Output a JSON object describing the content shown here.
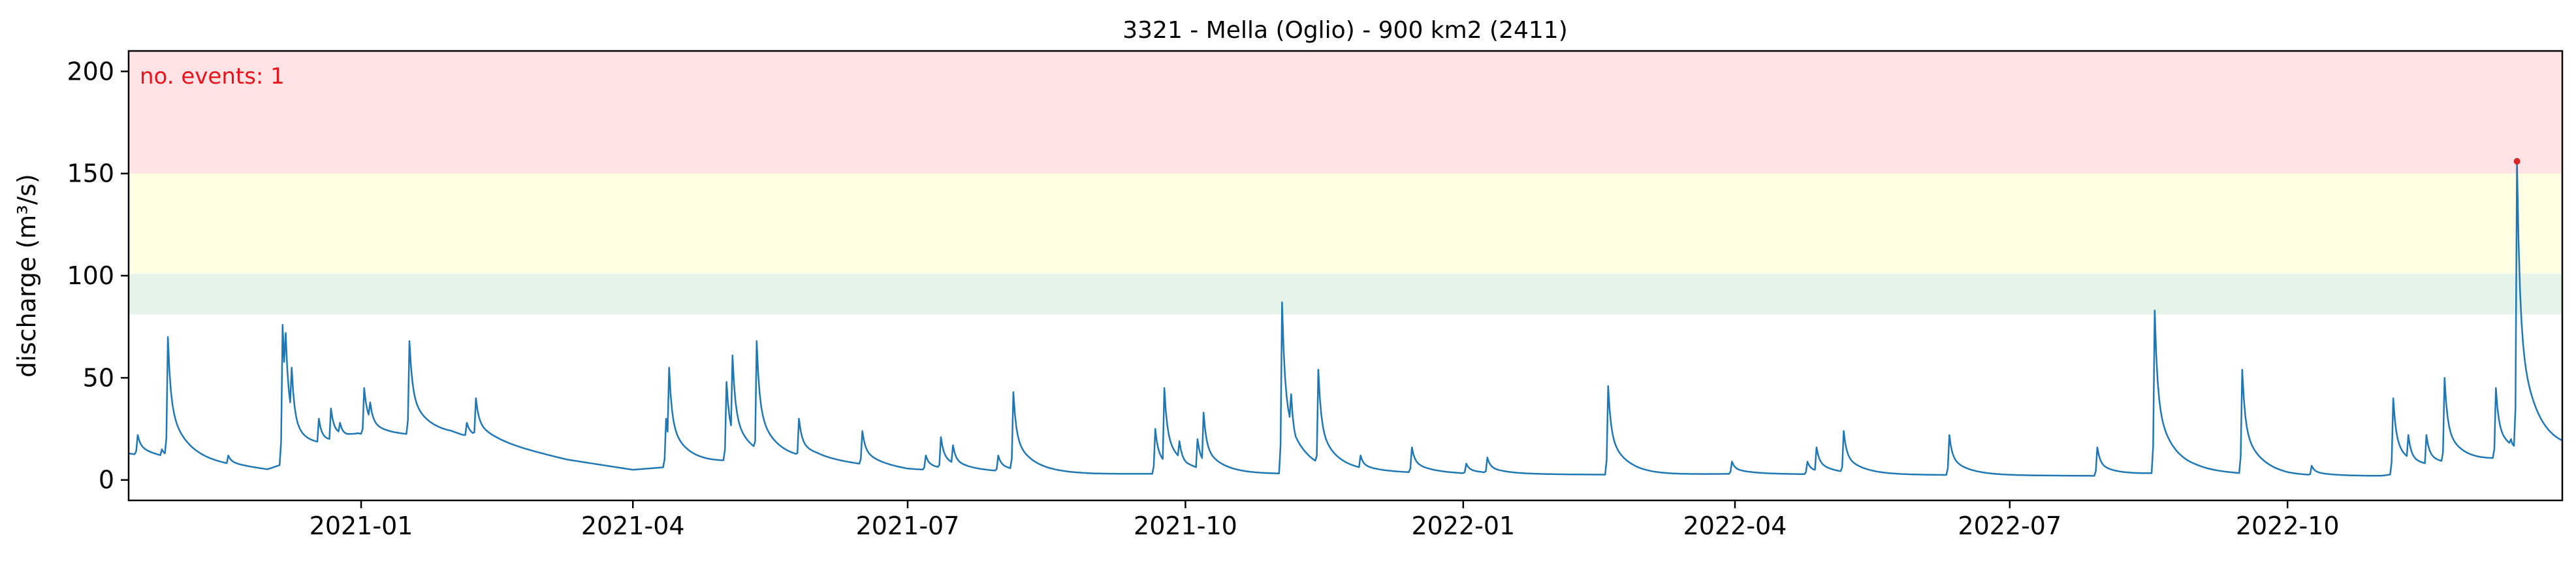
{
  "chart_data": {
    "type": "line",
    "title": "3321 - Mella (Oglio) - 900 km2 (2411)",
    "xlabel": "",
    "ylabel": "discharge (m³/s)",
    "xlim": [
      "2020-10-16",
      "2022-12-31"
    ],
    "ylim": [
      -10,
      210
    ],
    "grid": false,
    "colors": {
      "line": "#1f77b4",
      "event": "#d62728",
      "annotation": "#e8141c",
      "band_red": "#ffe3e5",
      "band_yellow": "#ffffe3",
      "band_green": "#e5f3e8"
    },
    "threshold_bands": [
      {
        "from": 150,
        "to": 210,
        "color": "#ffe3e5"
      },
      {
        "from": 101,
        "to": 150,
        "color": "#ffffe3"
      },
      {
        "from": 81,
        "to": 101,
        "color": "#e5f3e8"
      }
    ],
    "annotation": "no. events: 1",
    "x_ticks": [
      "2021-01",
      "2021-04",
      "2021-07",
      "2021-10",
      "2022-01",
      "2022-04",
      "2022-07",
      "2022-10"
    ],
    "y_ticks": [
      0,
      50,
      100,
      150,
      200
    ],
    "baseline": [
      [
        "2020-10-16",
        13
      ],
      [
        "2020-10-31",
        10
      ],
      [
        "2020-12-01",
        5
      ],
      [
        "2020-12-31",
        21
      ],
      [
        "2021-01-31",
        22
      ],
      [
        "2021-02-15",
        18
      ],
      [
        "2021-03-10",
        10
      ],
      [
        "2021-04-01",
        5
      ],
      [
        "2021-05-05",
        9
      ],
      [
        "2021-06-01",
        10
      ],
      [
        "2021-07-01",
        5
      ],
      [
        "2021-08-01",
        4
      ],
      [
        "2021-09-01",
        3
      ],
      [
        "2021-11-01",
        3
      ],
      [
        "2021-12-01",
        4
      ],
      [
        "2022-01-01",
        3
      ],
      [
        "2022-03-01",
        2.5
      ],
      [
        "2022-04-01",
        3
      ],
      [
        "2022-06-01",
        2.5
      ],
      [
        "2022-08-01",
        2
      ],
      [
        "2022-09-01",
        4
      ],
      [
        "2022-10-01",
        2
      ],
      [
        "2022-11-01",
        2
      ],
      [
        "2022-12-31",
        14
      ]
    ],
    "peaks": [
      [
        "2020-10-19",
        22
      ],
      [
        "2020-10-27",
        15
      ],
      [
        "2020-10-29",
        70
      ],
      [
        "2020-11-18",
        12
      ],
      [
        "2020-12-06",
        76
      ],
      [
        "2020-12-07",
        72
      ],
      [
        "2020-12-09",
        55
      ],
      [
        "2020-12-12",
        24
      ],
      [
        "2020-12-18",
        30
      ],
      [
        "2020-12-22",
        35
      ],
      [
        "2020-12-25",
        28
      ],
      [
        "2021-01-02",
        45
      ],
      [
        "2021-01-04",
        38
      ],
      [
        "2021-01-17",
        68
      ],
      [
        "2021-02-05",
        28
      ],
      [
        "2021-02-08",
        40
      ],
      [
        "2021-04-12",
        30
      ],
      [
        "2021-04-13",
        55
      ],
      [
        "2021-05-02",
        48
      ],
      [
        "2021-05-04",
        61
      ],
      [
        "2021-05-12",
        68
      ],
      [
        "2021-05-26",
        30
      ],
      [
        "2021-06-16",
        24
      ],
      [
        "2021-07-07",
        12
      ],
      [
        "2021-07-12",
        21
      ],
      [
        "2021-07-16",
        17
      ],
      [
        "2021-07-31",
        12
      ],
      [
        "2021-08-05",
        43
      ],
      [
        "2021-09-21",
        25
      ],
      [
        "2021-09-24",
        45
      ],
      [
        "2021-09-29",
        19
      ],
      [
        "2021-10-05",
        20
      ],
      [
        "2021-10-07",
        33
      ],
      [
        "2021-11-02",
        87
      ],
      [
        "2021-11-05",
        42
      ],
      [
        "2021-11-14",
        54
      ],
      [
        "2021-11-28",
        12
      ],
      [
        "2021-12-15",
        16
      ],
      [
        "2022-01-02",
        8
      ],
      [
        "2022-01-09",
        11
      ],
      [
        "2022-02-18",
        46
      ],
      [
        "2022-03-31",
        9
      ],
      [
        "2022-04-25",
        9
      ],
      [
        "2022-04-28",
        16
      ],
      [
        "2022-05-07",
        24
      ],
      [
        "2022-06-11",
        22
      ],
      [
        "2022-07-30",
        16
      ],
      [
        "2022-08-18",
        83
      ],
      [
        "2022-09-16",
        54
      ],
      [
        "2022-09-20",
        10
      ],
      [
        "2022-10-09",
        7
      ],
      [
        "2022-11-05",
        40
      ],
      [
        "2022-11-10",
        22
      ],
      [
        "2022-11-16",
        22
      ],
      [
        "2022-11-22",
        50
      ],
      [
        "2022-12-09",
        45
      ],
      [
        "2022-12-14",
        20
      ],
      [
        "2022-12-16",
        156
      ],
      [
        "2022-12-18",
        55
      ],
      [
        "2022-12-20",
        30
      ]
    ],
    "events": [
      {
        "date": "2022-12-16",
        "value": 156
      }
    ]
  }
}
